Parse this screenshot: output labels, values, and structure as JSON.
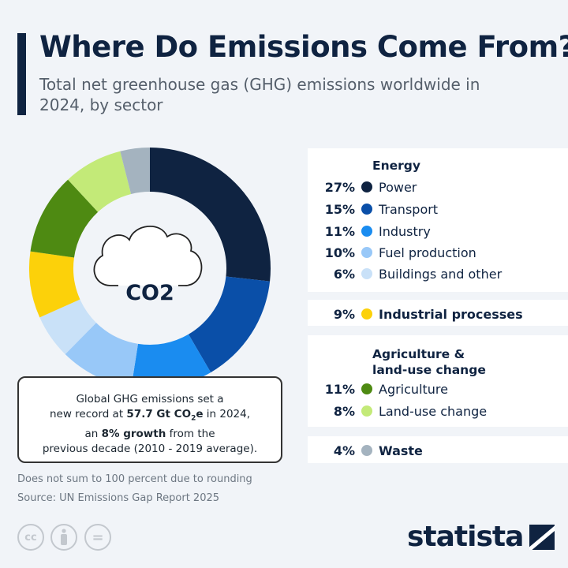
{
  "header": {
    "title": "Where Do Emissions Come From?",
    "subtitle": "Total net greenhouse gas (GHG) emissions worldwide in 2024, by sector"
  },
  "chart_data": {
    "type": "pie",
    "donut": true,
    "center_label": "CO2",
    "unit": "%",
    "categories": [
      "Power",
      "Transport",
      "Industry",
      "Fuel production",
      "Buildings and other",
      "Industrial processes",
      "Agriculture",
      "Land-use change",
      "Waste"
    ],
    "values": [
      27,
      15,
      11,
      10,
      6,
      9,
      11,
      8,
      4
    ],
    "colors": [
      "#0f2341",
      "#0a4fa8",
      "#1a8cf0",
      "#98c8f8",
      "#c9e1f8",
      "#fcd10a",
      "#4e8a12",
      "#c3ea78",
      "#a4b3bf"
    ],
    "groups": [
      {
        "name": "Energy",
        "items": [
          0,
          1,
          2,
          3,
          4
        ]
      },
      {
        "name": "",
        "items": [
          5
        ]
      },
      {
        "name": "Agriculture & land-use change",
        "items": [
          6,
          7
        ]
      },
      {
        "name": "",
        "items": [
          8
        ]
      }
    ],
    "legend_placement": "right"
  },
  "legend": {
    "energy_header": "Energy",
    "agri_header_1": "Agriculture &",
    "agri_header_2": "land-use change",
    "pcts": [
      "27%",
      "15%",
      "11%",
      "10%",
      "6%",
      "9%",
      "11%",
      "8%",
      "4%"
    ]
  },
  "note": {
    "l1": "Global GHG emissions set a",
    "l2a": "new record at ",
    "l2b": "57.7 Gt CO",
    "l2sub": "2",
    "l2c": "e",
    "l2d": " in 2024,",
    "l3a": "an ",
    "l3b": "8% growth",
    "l3c": " from the",
    "l4": "previous decade (2010 - 2019 average)."
  },
  "footer": {
    "note": "Does not sum to 100 percent due to rounding",
    "source": "Source: UN Emissions Gap Report 2025",
    "brand": "statista",
    "icons": [
      "cc-icon",
      "by-icon",
      "nd-icon"
    ],
    "cc": "cc",
    "eq": "="
  }
}
